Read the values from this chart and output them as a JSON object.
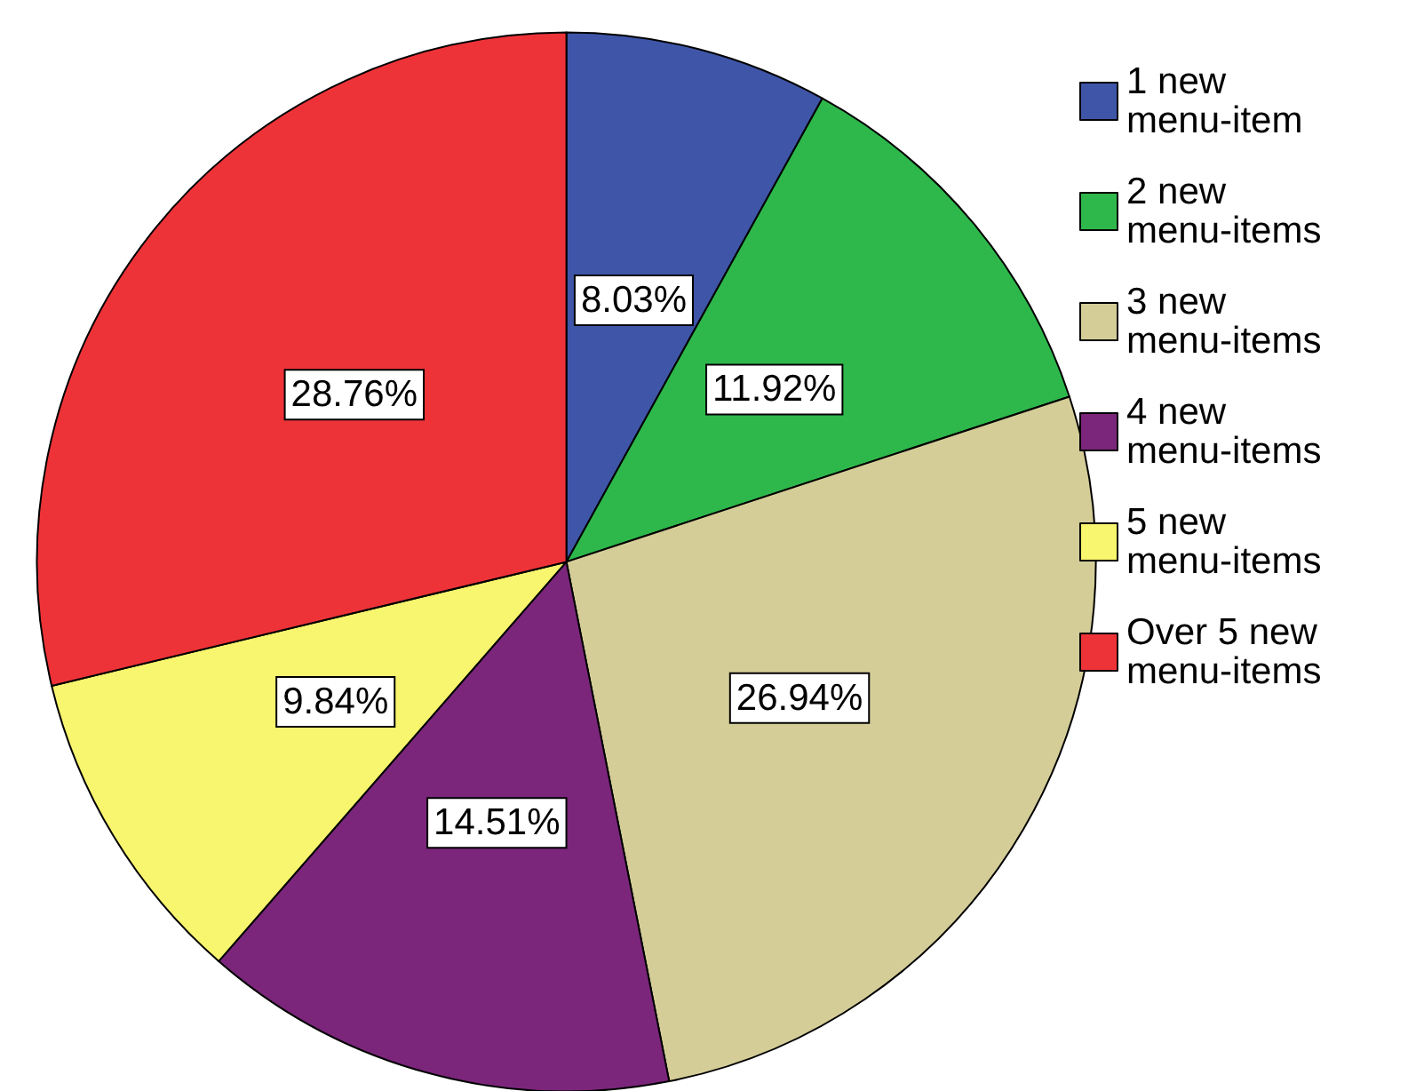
{
  "chart_data": {
    "type": "pie",
    "categories": [
      "1 new menu-item",
      "2 new menu-items",
      "3 new menu-items",
      "4 new menu-items",
      "5 new menu-items",
      "Over 5 new menu-items"
    ],
    "values": [
      8.03,
      11.92,
      26.94,
      14.51,
      9.84,
      28.76
    ],
    "value_labels": [
      "8.03%",
      "11.92%",
      "26.94%",
      "14.51%",
      "9.84%",
      "28.76%"
    ],
    "colors": [
      "#3f55a8",
      "#2eb84b",
      "#d4cd98",
      "#7b267b",
      "#f8f56e",
      "#ee3338"
    ],
    "legend": "top right"
  }
}
